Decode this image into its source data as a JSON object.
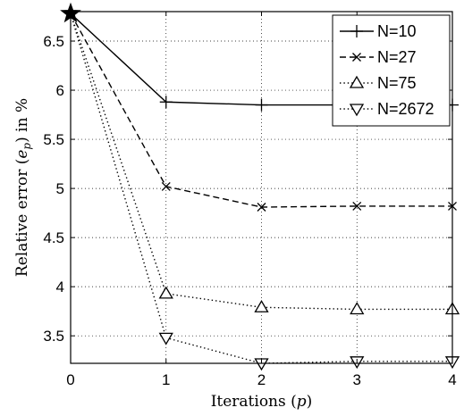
{
  "chart_data": {
    "type": "line",
    "xlabel": "Iterations (p)",
    "ylabel": "Relative error (e_p) in %",
    "xlabel_parts": {
      "main": "Iterations (",
      "var": "p",
      "end": ")"
    },
    "ylabel_parts": {
      "main": "Relative error (",
      "var": "e",
      "sub": "p",
      "end": ") in %"
    },
    "xlim": [
      0,
      4
    ],
    "ylim": [
      3.22,
      6.8
    ],
    "xticks": [
      "0",
      "1",
      "2",
      "3",
      "4"
    ],
    "xtick_values": [
      0,
      1,
      2,
      3,
      4
    ],
    "yticks": [
      "3.5",
      "4",
      "4.5",
      "5",
      "5.5",
      "6",
      "6.5"
    ],
    "ytick_values": [
      3.5,
      4,
      4.5,
      5,
      5.5,
      6,
      6.5
    ],
    "legend_position": "top-right",
    "x": [
      0,
      1,
      2,
      3,
      4
    ],
    "series": [
      {
        "name": "N=10",
        "values": [
          6.78,
          5.88,
          5.85,
          5.85,
          5.85
        ],
        "line": "solid",
        "marker": "plus",
        "color": "#000000"
      },
      {
        "name": "N=27",
        "values": [
          6.78,
          5.02,
          4.81,
          4.82,
          4.82
        ],
        "line": "dashed",
        "marker": "x",
        "color": "#000000"
      },
      {
        "name": "N=75",
        "values": [
          6.78,
          3.93,
          3.79,
          3.77,
          3.77
        ],
        "line": "dotted",
        "marker": "triangle-up",
        "color": "#000000"
      },
      {
        "name": "N=2672",
        "values": [
          6.78,
          3.48,
          3.22,
          3.24,
          3.24
        ],
        "line": "dotted",
        "marker": "triangle-down",
        "color": "#000000"
      }
    ],
    "start_marker": "star"
  }
}
